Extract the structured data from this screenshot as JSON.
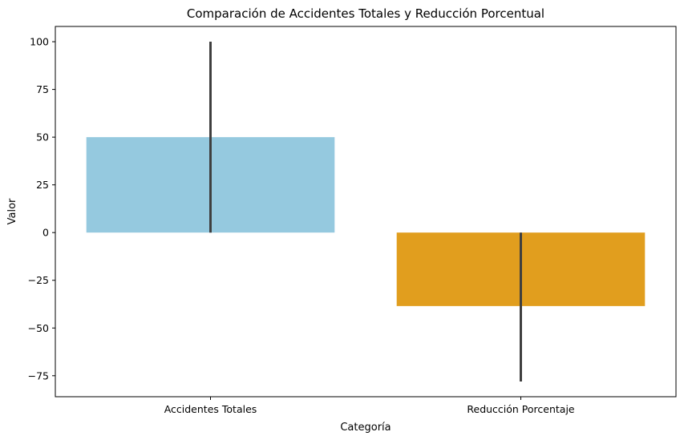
{
  "chart_data": {
    "type": "bar",
    "title": "Comparación de Accidentes Totales y Reducción Porcentual",
    "xlabel": "Categoría",
    "ylabel": "Valor",
    "categories": [
      "Accidentes Totales",
      "Reducción Porcentaje"
    ],
    "values": [
      50,
      -38.5
    ],
    "error_bars": [
      {
        "low": 0,
        "high": 100
      },
      {
        "low": -78,
        "high": 0
      }
    ],
    "colors": [
      "#95c9df",
      "#e19e1e"
    ],
    "error_bar_color": "#3f3f3f",
    "ylim": [
      -86,
      108
    ],
    "yticks": [
      -75,
      -50,
      -25,
      0,
      25,
      50,
      75,
      100
    ],
    "ytick_labels": [
      "−75",
      "−50",
      "−25",
      "0",
      "25",
      "50",
      "75",
      "100"
    ],
    "grid": false,
    "legend": "none"
  }
}
